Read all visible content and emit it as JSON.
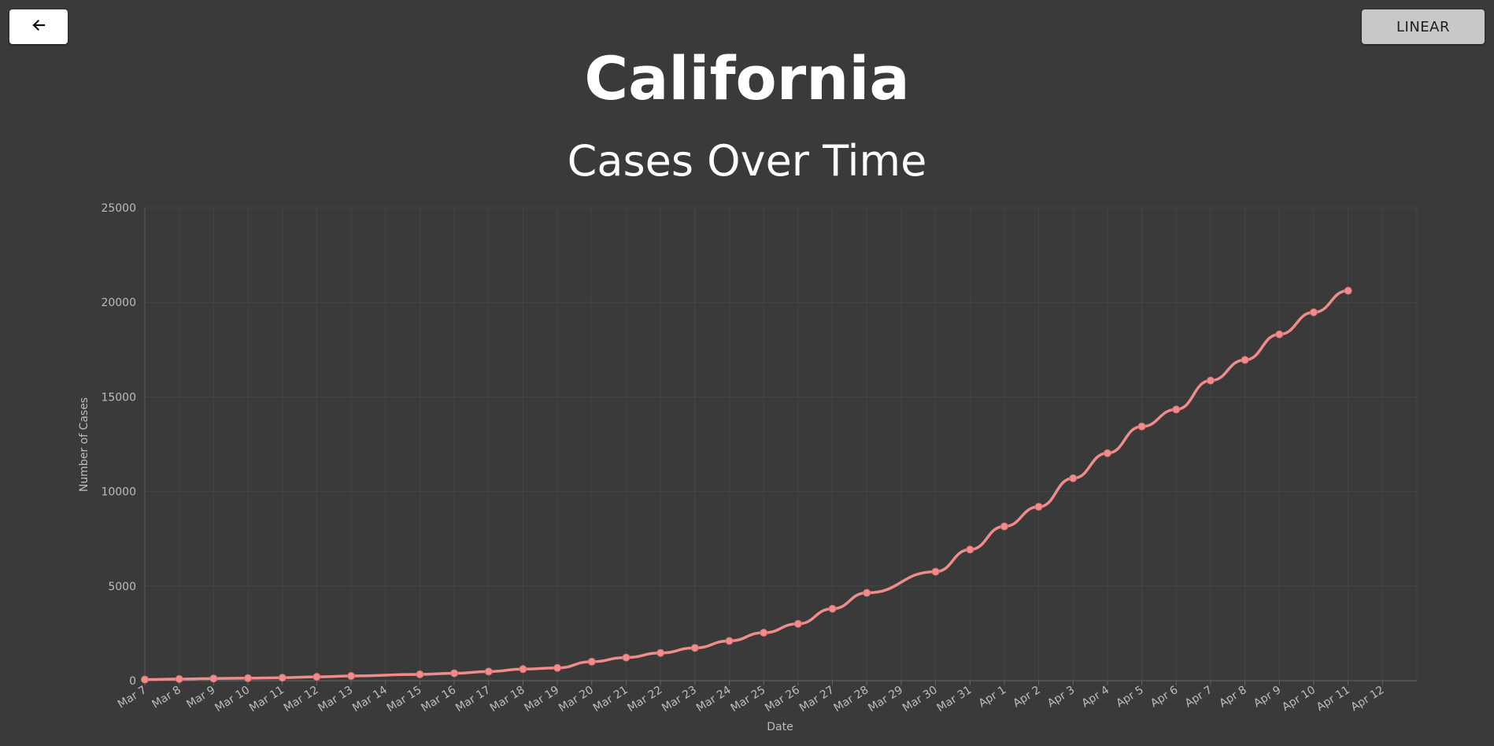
{
  "header": {
    "back_icon": "arrow-left-icon",
    "scale_button_label": "LINEAR",
    "state_name": "California"
  },
  "colors": {
    "background": "#3a3a3a",
    "series_line": "#f08c8c",
    "grid": "#444444"
  },
  "chart_data": {
    "type": "line",
    "title": "Cases Over Time",
    "xlabel": "Date",
    "ylabel": "Number of Cases",
    "categories": [
      "Mar 7",
      "Mar 8",
      "Mar 9",
      "Mar 10",
      "Mar 11",
      "Mar 12",
      "Mar 13",
      "Mar 14",
      "Mar 15",
      "Mar 16",
      "Mar 17",
      "Mar 18",
      "Mar 19",
      "Mar 20",
      "Mar 21",
      "Mar 22",
      "Mar 23",
      "Mar 24",
      "Mar 25",
      "Mar 26",
      "Mar 27",
      "Mar 28",
      "Mar 29",
      "Mar 30",
      "Mar 31",
      "Apr 1",
      "Apr 2",
      "Apr 3",
      "Apr 4",
      "Apr 5",
      "Apr 6",
      "Apr 7",
      "Apr 8",
      "Apr 9",
      "Apr 10",
      "Apr 11",
      "Apr 12"
    ],
    "values": [
      60,
      88,
      114,
      133,
      157,
      202,
      247,
      null,
      335,
      392,
      483,
      611,
      675,
      1006,
      1224,
      1468,
      1733,
      2102,
      2535,
      3006,
      3802,
      4643,
      null,
      5763,
      6932,
      8155,
      9191,
      10701,
      12026,
      13438,
      14336,
      15865,
      16957,
      18309,
      19472,
      20615,
      null
    ],
    "ylim": [
      0,
      25000
    ],
    "yticks": [
      0,
      5000,
      10000,
      15000,
      20000,
      25000
    ],
    "grid": true,
    "legend": "none"
  }
}
